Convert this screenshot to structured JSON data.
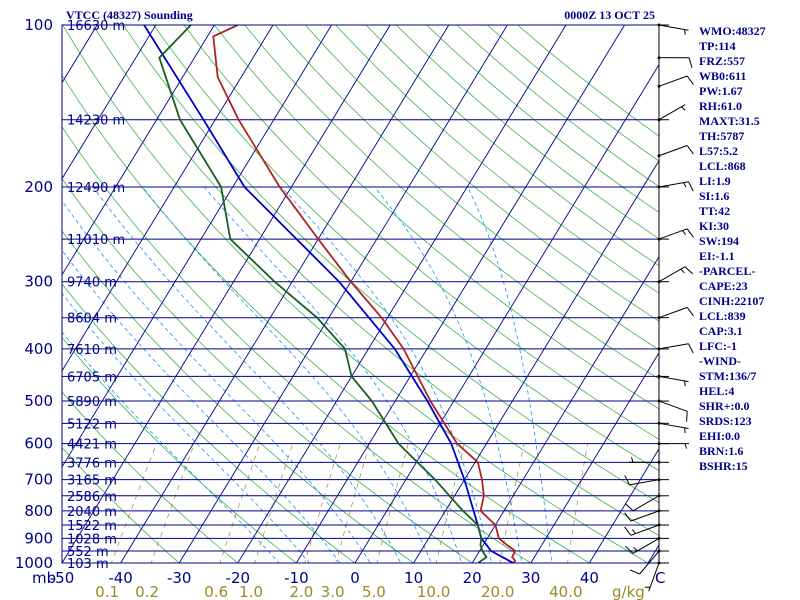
{
  "chart_data": {
    "type": "skew-t",
    "title_left": "VTCC (48327) Sounding",
    "title_right": "0000Z 13 OCT 25",
    "pressure_ticks": [
      "100",
      "200",
      "300",
      "400",
      "500",
      "600",
      "700",
      "800",
      "900",
      "1000"
    ],
    "pressure_unit": "mb",
    "temperature_ticks": [
      "-50",
      "-40",
      "-30",
      "-20",
      "-10",
      "0",
      "10",
      "20",
      "30",
      "40"
    ],
    "temperature_unit": "C",
    "mixing_ratio_labels": [
      "0.1",
      "0.2",
      "0.6",
      "1.0",
      "2.0",
      "3.0",
      "5.0",
      "10.0",
      "20.0",
      "40.0"
    ],
    "mixing_ratio_unit": "g/kg",
    "height_labels": [
      {
        "p": 100,
        "text": "16630 m"
      },
      {
        "p": 150,
        "text": "14230 m"
      },
      {
        "p": 200,
        "text": "12490 m"
      },
      {
        "p": 250,
        "text": "11010 m"
      },
      {
        "p": 300,
        "text": "9740 m"
      },
      {
        "p": 350,
        "text": "8604 m"
      },
      {
        "p": 400,
        "text": "7610 m"
      },
      {
        "p": 450,
        "text": "6705 m"
      },
      {
        "p": 500,
        "text": "5890 m"
      },
      {
        "p": 550,
        "text": "5122 m"
      },
      {
        "p": 600,
        "text": "4421 m"
      },
      {
        "p": 650,
        "text": "3776 m"
      },
      {
        "p": 700,
        "text": "3165 m"
      },
      {
        "p": 750,
        "text": "2586 m"
      },
      {
        "p": 800,
        "text": "2040 m"
      },
      {
        "p": 850,
        "text": "1522 m"
      },
      {
        "p": 900,
        "text": "1028 m"
      },
      {
        "p": 950,
        "text": "552 m"
      },
      {
        "p": 1000,
        "text": "103 m"
      }
    ],
    "temperature_profile": [
      {
        "p": 1000,
        "t": 27.0
      },
      {
        "p": 990,
        "t": 27.1
      },
      {
        "p": 975,
        "t": 26.2
      },
      {
        "p": 950,
        "t": 26.1
      },
      {
        "p": 925,
        "t": 24.0
      },
      {
        "p": 900,
        "t": 22.0
      },
      {
        "p": 850,
        "t": 20.0
      },
      {
        "p": 800,
        "t": 16.0
      },
      {
        "p": 750,
        "t": 15.0
      },
      {
        "p": 700,
        "t": 13.0
      },
      {
        "p": 650,
        "t": 10.5
      },
      {
        "p": 600,
        "t": 5.0
      },
      {
        "p": 500,
        "t": -4.0
      },
      {
        "p": 400,
        "t": -14.0
      },
      {
        "p": 350,
        "t": -21.0
      },
      {
        "p": 300,
        "t": -30.0
      },
      {
        "p": 250,
        "t": -40.0
      },
      {
        "p": 200,
        "t": -52.0
      },
      {
        "p": 150,
        "t": -66.0
      },
      {
        "p": 125,
        "t": -74.0
      },
      {
        "p": 105,
        "t": -79.0
      },
      {
        "p": 100,
        "t": -76.0
      }
    ],
    "dewpoint_profile": [
      {
        "p": 1000,
        "t": 21.0
      },
      {
        "p": 975,
        "t": 21.8
      },
      {
        "p": 950,
        "t": 20.5
      },
      {
        "p": 925,
        "t": 19.5
      },
      {
        "p": 900,
        "t": 19.0
      },
      {
        "p": 850,
        "t": 17.0
      },
      {
        "p": 800,
        "t": 13.0
      },
      {
        "p": 700,
        "t": 5.0
      },
      {
        "p": 600,
        "t": -5.0
      },
      {
        "p": 500,
        "t": -14.0
      },
      {
        "p": 450,
        "t": -20.0
      },
      {
        "p": 400,
        "t": -24.0
      },
      {
        "p": 350,
        "t": -32.0
      },
      {
        "p": 300,
        "t": -43.0
      },
      {
        "p": 250,
        "t": -55.0
      },
      {
        "p": 200,
        "t": -62.0
      },
      {
        "p": 150,
        "t": -76.0
      },
      {
        "p": 115,
        "t": -86.0
      },
      {
        "p": 100,
        "t": -84.0
      }
    ],
    "parcel_profile": [
      {
        "p": 1000,
        "t": 27.0
      },
      {
        "p": 950,
        "t": 22.0
      },
      {
        "p": 900,
        "t": 19.0
      },
      {
        "p": 850,
        "t": 17.0
      },
      {
        "p": 700,
        "t": 10.0
      },
      {
        "p": 600,
        "t": 4.0
      },
      {
        "p": 500,
        "t": -4.5
      },
      {
        "p": 400,
        "t": -15.5
      },
      {
        "p": 300,
        "t": -32.0
      },
      {
        "p": 200,
        "t": -58.0
      },
      {
        "p": 150,
        "t": -72.0
      },
      {
        "p": 100,
        "t": -92.0
      }
    ],
    "wind_barbs": [
      {
        "p": 1000,
        "dir": 200,
        "kt": 5
      },
      {
        "p": 950,
        "dir": 220,
        "kt": 10
      },
      {
        "p": 900,
        "dir": 240,
        "kt": 15
      },
      {
        "p": 850,
        "dir": 250,
        "kt": 15
      },
      {
        "p": 800,
        "dir": 250,
        "kt": 10
      },
      {
        "p": 750,
        "dir": 240,
        "kt": 10
      },
      {
        "p": 700,
        "dir": 260,
        "kt": 10
      },
      {
        "p": 650,
        "dir": 270,
        "kt": 5
      },
      {
        "p": 600,
        "dir": 90,
        "kt": 5
      },
      {
        "p": 550,
        "dir": 100,
        "kt": 5
      },
      {
        "p": 500,
        "dir": 110,
        "kt": 10
      },
      {
        "p": 450,
        "dir": 100,
        "kt": 5
      },
      {
        "p": 400,
        "dir": 80,
        "kt": 10
      },
      {
        "p": 350,
        "dir": 70,
        "kt": 10
      },
      {
        "p": 300,
        "dir": 60,
        "kt": 15
      },
      {
        "p": 250,
        "dir": 70,
        "kt": 15
      },
      {
        "p": 200,
        "dir": 80,
        "kt": 15
      },
      {
        "p": 175,
        "dir": 70,
        "kt": 10
      },
      {
        "p": 150,
        "dir": 60,
        "kt": 5
      },
      {
        "p": 130,
        "dir": 70,
        "kt": 10
      },
      {
        "p": 115,
        "dir": 90,
        "kt": 10
      },
      {
        "p": 100,
        "dir": 100,
        "kt": 5
      }
    ],
    "indices": [
      "WMO:48327",
      "TP:114",
      "FRZ:557",
      "WB0:611",
      "PW:1.67",
      "RH:61.0",
      "MAXT:31.5",
      "TH:5787",
      "L57:5.2",
      "LCL:868",
      "LI:1.9",
      "SI:1.6",
      "TT:42",
      "KI:30",
      "SW:194",
      "EI:-1.1",
      "-PARCEL-",
      "CAPE:23",
      "CINH:22107",
      "LCL:839",
      "CAP:3.1",
      "LFC:-1",
      "-WIND-",
      "STM:136/7",
      "HEL:4",
      "SHR+:0.0",
      "SRDS:123",
      "EHI:0.0",
      "BRN:1.6",
      "BSHR:15"
    ],
    "colors": {
      "isobar": "#00008b",
      "isotherm": "#00008b",
      "dry_adiabat": "#3cb44b",
      "moist_adiabat": "#1e90ff",
      "mixing_ratio": "#9c8a22",
      "temperature": "#b22222",
      "dewpoint": "#1b5e20",
      "parcel": "#0000cd",
      "label": "#00008b",
      "wind": "#000000"
    }
  }
}
